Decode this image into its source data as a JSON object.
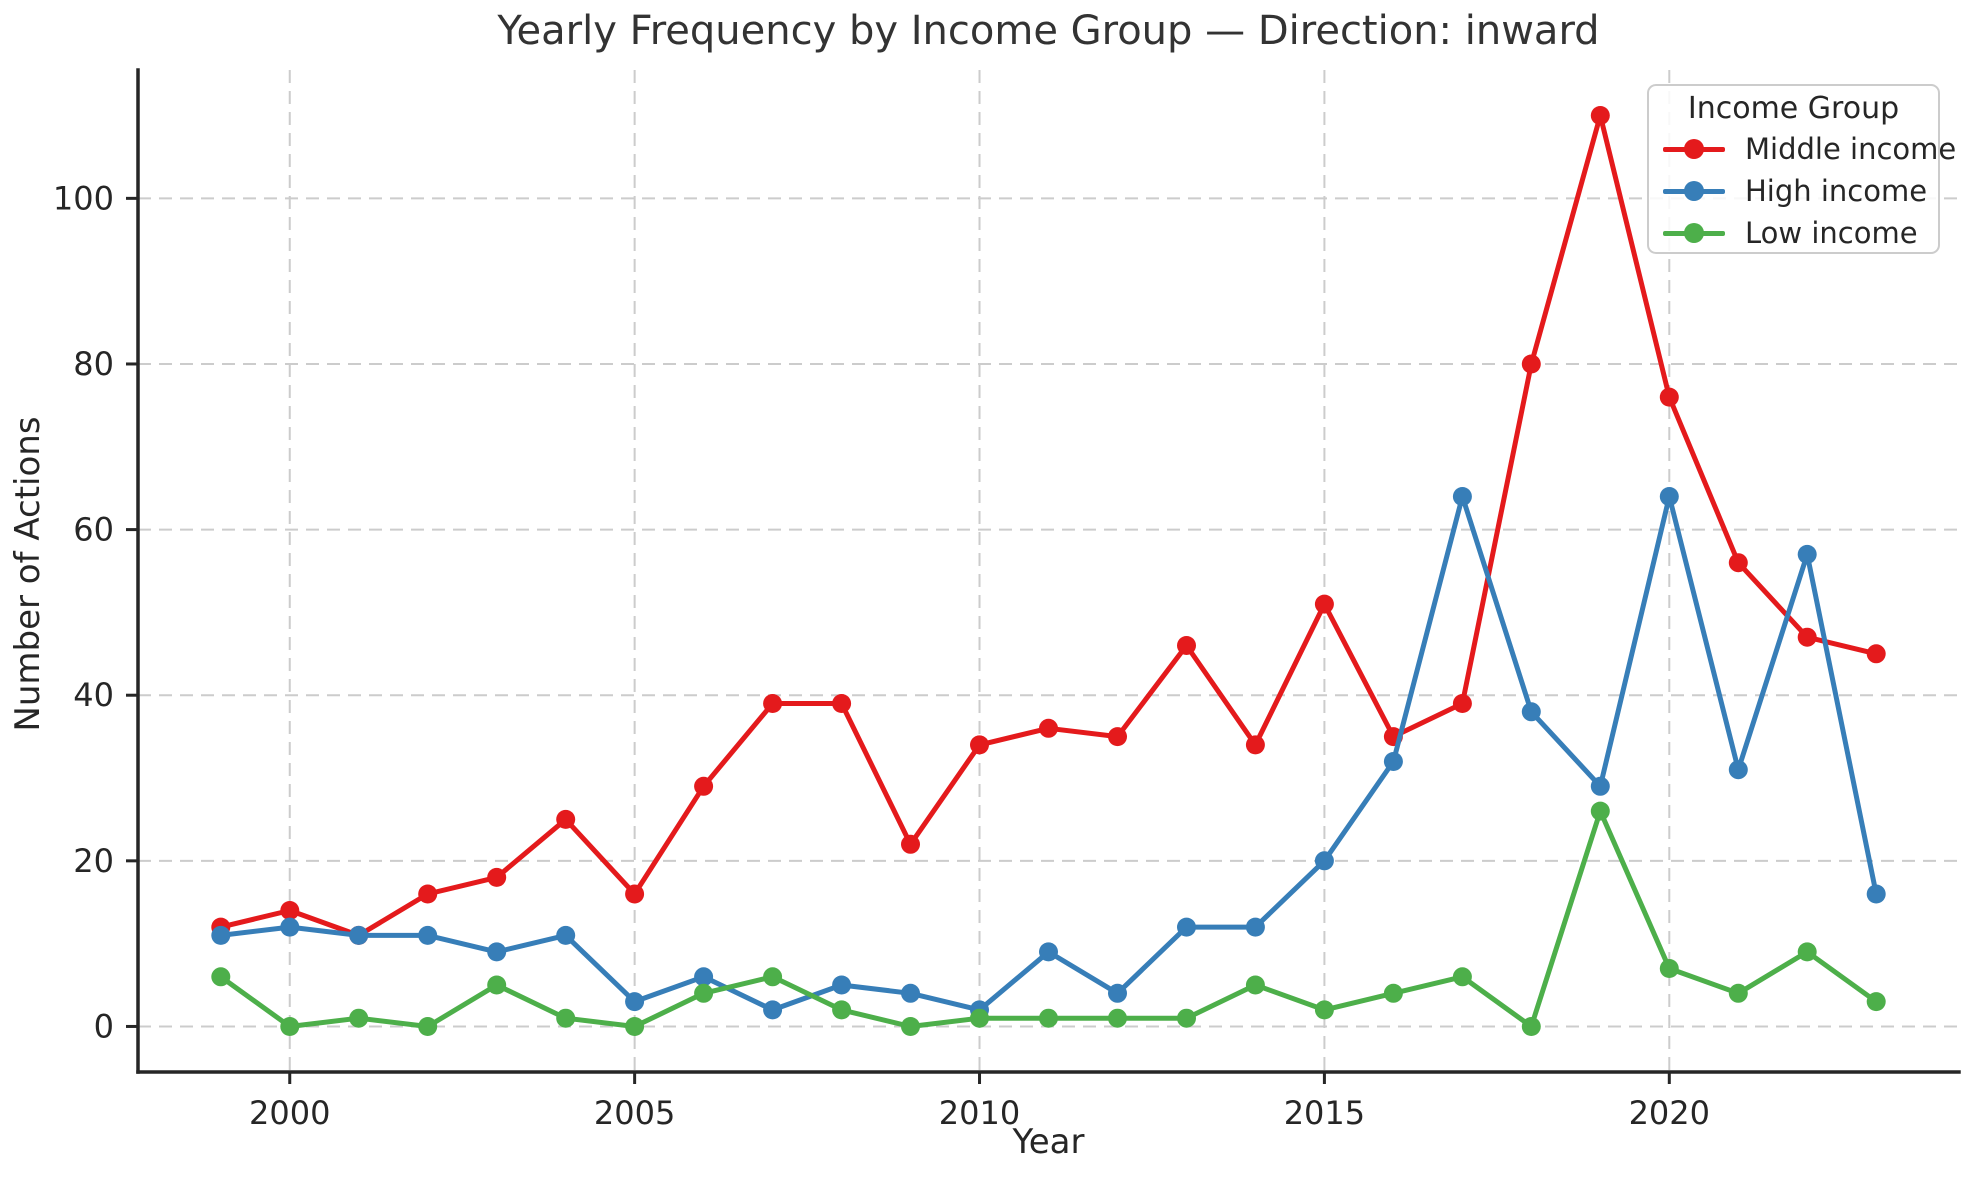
{
  "figure": {
    "title": "Yearly Frequency by Income Group — Direction: inward",
    "xlabel": "Year",
    "ylabel": "Number of Actions"
  },
  "legend": {
    "title": "Income Group"
  },
  "chart_data": {
    "type": "line",
    "title": "Yearly Frequency by Income Group — Direction: inward",
    "xlabel": "Year",
    "ylabel": "Number of Actions",
    "x": [
      1999,
      2000,
      2001,
      2002,
      2003,
      2004,
      2005,
      2006,
      2007,
      2008,
      2009,
      2010,
      2011,
      2012,
      2013,
      2014,
      2015,
      2016,
      2017,
      2018,
      2019,
      2020,
      2021,
      2022,
      2023
    ],
    "series": [
      {
        "name": "Middle income",
        "color": "#e41a1c",
        "values": [
          12,
          14,
          11,
          16,
          18,
          25,
          16,
          29,
          39,
          39,
          22,
          34,
          36,
          35,
          46,
          34,
          51,
          35,
          39,
          80,
          110,
          76,
          56,
          47,
          45
        ]
      },
      {
        "name": "High income",
        "color": "#377eb8",
        "values": [
          11,
          12,
          11,
          11,
          9,
          11,
          3,
          6,
          2,
          5,
          4,
          2,
          9,
          4,
          12,
          12,
          20,
          32,
          64,
          38,
          29,
          64,
          31,
          57,
          16
        ]
      },
      {
        "name": "Low income",
        "color": "#4daf4a",
        "values": [
          6,
          0,
          1,
          0,
          5,
          1,
          0,
          4,
          6,
          2,
          0,
          1,
          1,
          1,
          1,
          5,
          2,
          4,
          6,
          0,
          26,
          7,
          4,
          9,
          3
        ]
      }
    ],
    "xticks": [
      2000,
      2005,
      2010,
      2015,
      2020
    ],
    "yticks": [
      0,
      20,
      40,
      60,
      80,
      100
    ],
    "xlim": [
      1997.8,
      2024.2
    ],
    "ylim": [
      -5.5,
      115.5
    ],
    "grid": true,
    "legend_title": "Income Group",
    "legend_position": "upper right",
    "grid_color": "#cccccc",
    "axis_color": "#262626"
  }
}
